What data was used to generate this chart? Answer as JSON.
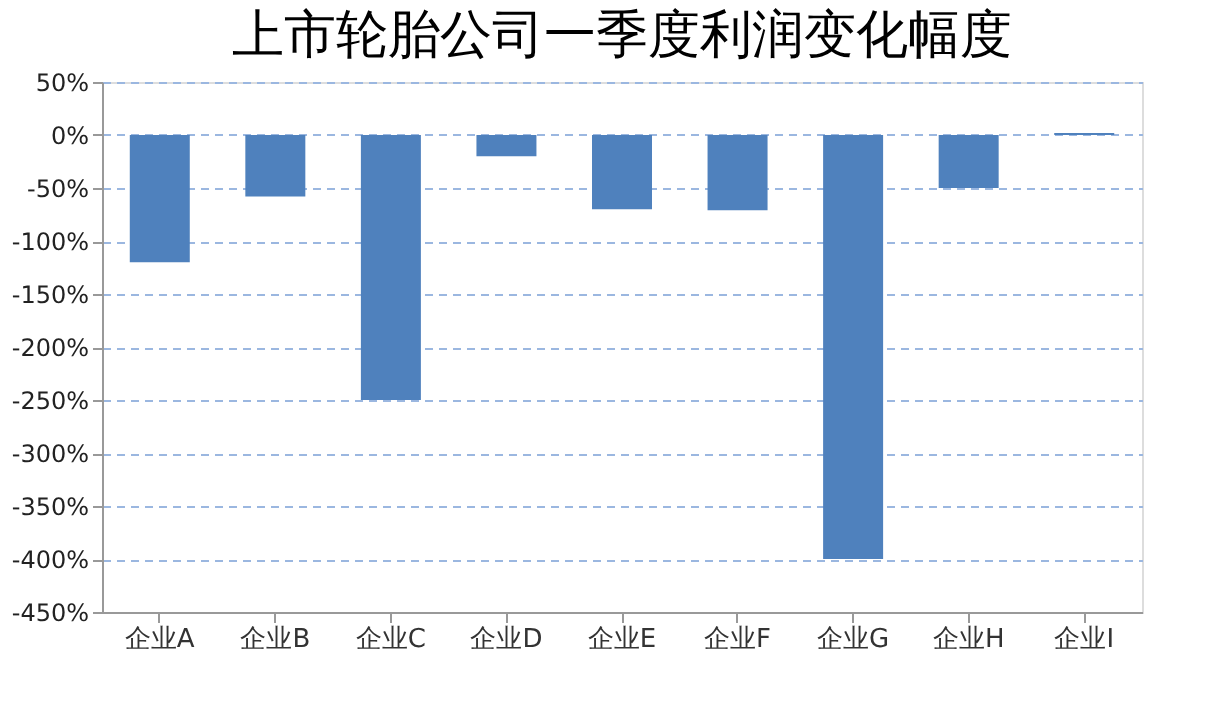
{
  "chart_data": {
    "type": "bar",
    "title": "上市轮胎公司一季度利润变化幅度",
    "categories": [
      "企业A",
      "企业B",
      "企业C",
      "企业D",
      "企业E",
      "企业F",
      "企业G",
      "企业H",
      "企业I"
    ],
    "values": [
      -120,
      -58,
      -250,
      -20,
      -70,
      -71,
      -400,
      -50,
      2
    ],
    "color": "#4f81bd",
    "ylim": [
      -450,
      50
    ],
    "yticks": [
      {
        "value": 50,
        "label": "50%"
      },
      {
        "value": 0,
        "label": "0%"
      },
      {
        "value": -50,
        "label": "-50%"
      },
      {
        "value": -100,
        "label": "-100%"
      },
      {
        "value": -150,
        "label": "-150%"
      },
      {
        "value": -200,
        "label": "-200%"
      },
      {
        "value": -250,
        "label": "-250%"
      },
      {
        "value": -300,
        "label": "-300%"
      },
      {
        "value": -350,
        "label": "-350%"
      },
      {
        "value": -400,
        "label": "-400%"
      },
      {
        "value": -450,
        "label": "-450%"
      }
    ],
    "grid": "y"
  }
}
